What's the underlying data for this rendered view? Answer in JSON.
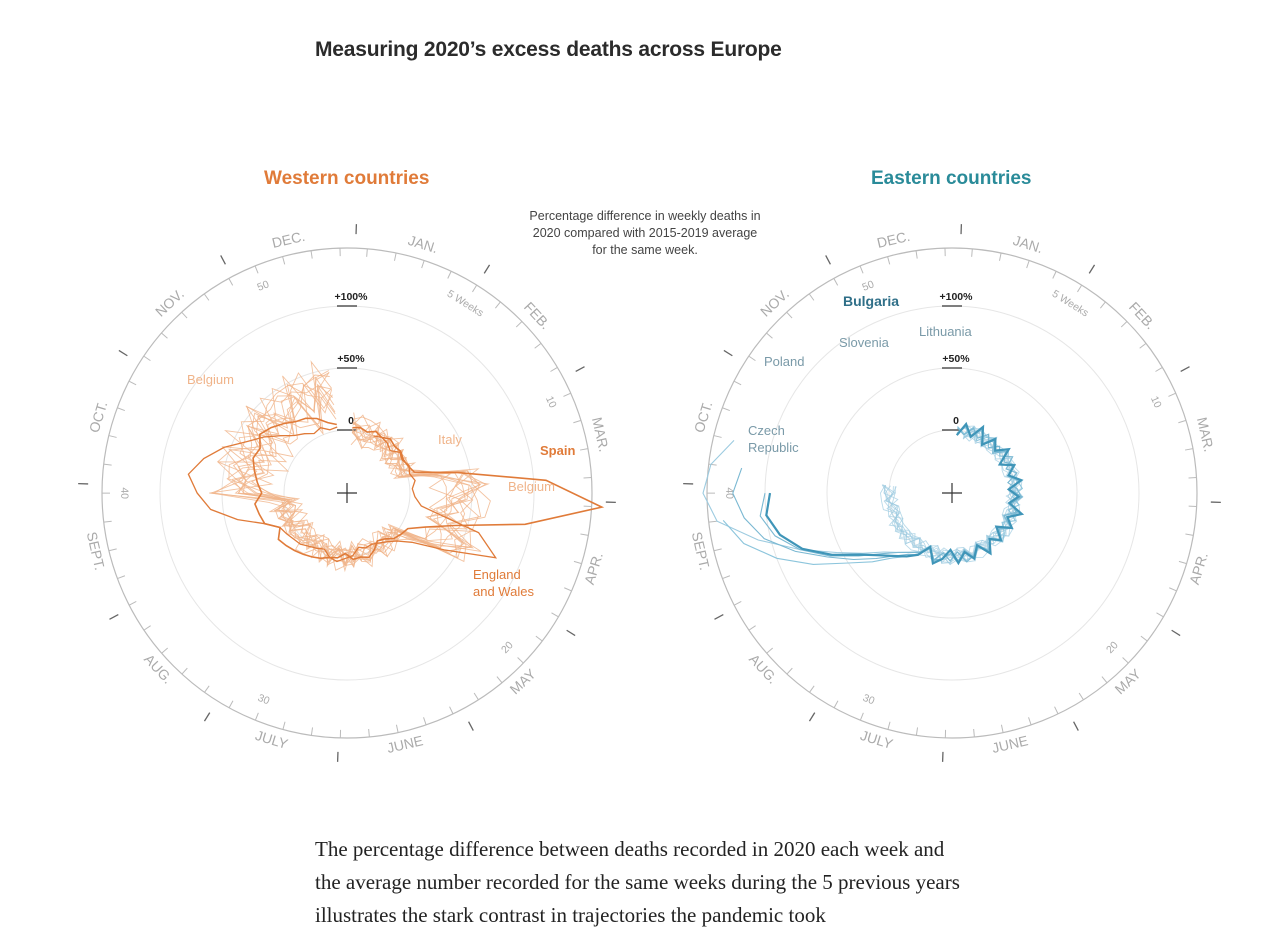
{
  "page": {
    "title": "Measuring 2020’s excess deaths across Europe",
    "note": "Percentage difference in weekly deaths in 2020 compared with 2015-2019 average for the same week.",
    "body_text": "The percentage difference between deaths recorded in 2020 each week and the average number recorded for the same weeks during the 5 previous years illustrates the stark contrast in trajectories the pandemic took"
  },
  "colors": {
    "western": "#e07b39",
    "western_light": "#f0b48a",
    "eastern": "#4a9fc0",
    "eastern_light": "#9ccbe0",
    "axis": "#bbbbbb",
    "title": "#2b2b2b"
  },
  "chart_data": [
    {
      "type": "radial-line",
      "title": "Western countries",
      "r_ticks": [
        "0",
        "+50%",
        "+100%"
      ],
      "week_ticks": [
        "5 Weeks",
        "10",
        "20",
        "30",
        "40",
        "50"
      ],
      "month_labels": [
        "JAN.",
        "FEB.",
        "MAR.",
        "APR.",
        "MAY",
        "JUNE",
        "JULY",
        "AUG.",
        "SEPT.",
        "OCT.",
        "NOV.",
        "DEC."
      ],
      "series": [
        {
          "name": "Spain",
          "highlight": true
        },
        {
          "name": "Italy",
          "highlight": false
        },
        {
          "name": "Belgium",
          "highlight": false
        },
        {
          "name": "England and Wales",
          "highlight": false
        }
      ],
      "extra_labels": [
        "Belgium"
      ]
    },
    {
      "type": "radial-line",
      "title": "Eastern countries",
      "r_ticks": [
        "0",
        "+50%",
        "+100%"
      ],
      "week_ticks": [
        "5 Weeks",
        "10",
        "20",
        "30",
        "40",
        "50"
      ],
      "month_labels": [
        "JAN.",
        "FEB.",
        "MAR.",
        "APR.",
        "MAY",
        "JUNE",
        "JULY",
        "AUG.",
        "SEPT.",
        "OCT.",
        "NOV.",
        "DEC."
      ],
      "series": [
        {
          "name": "Bulgaria",
          "highlight": true
        },
        {
          "name": "Lithuania",
          "highlight": false
        },
        {
          "name": "Slovenia",
          "highlight": false
        },
        {
          "name": "Poland",
          "highlight": false
        },
        {
          "name": "Czech Republic",
          "highlight": false
        }
      ]
    }
  ]
}
